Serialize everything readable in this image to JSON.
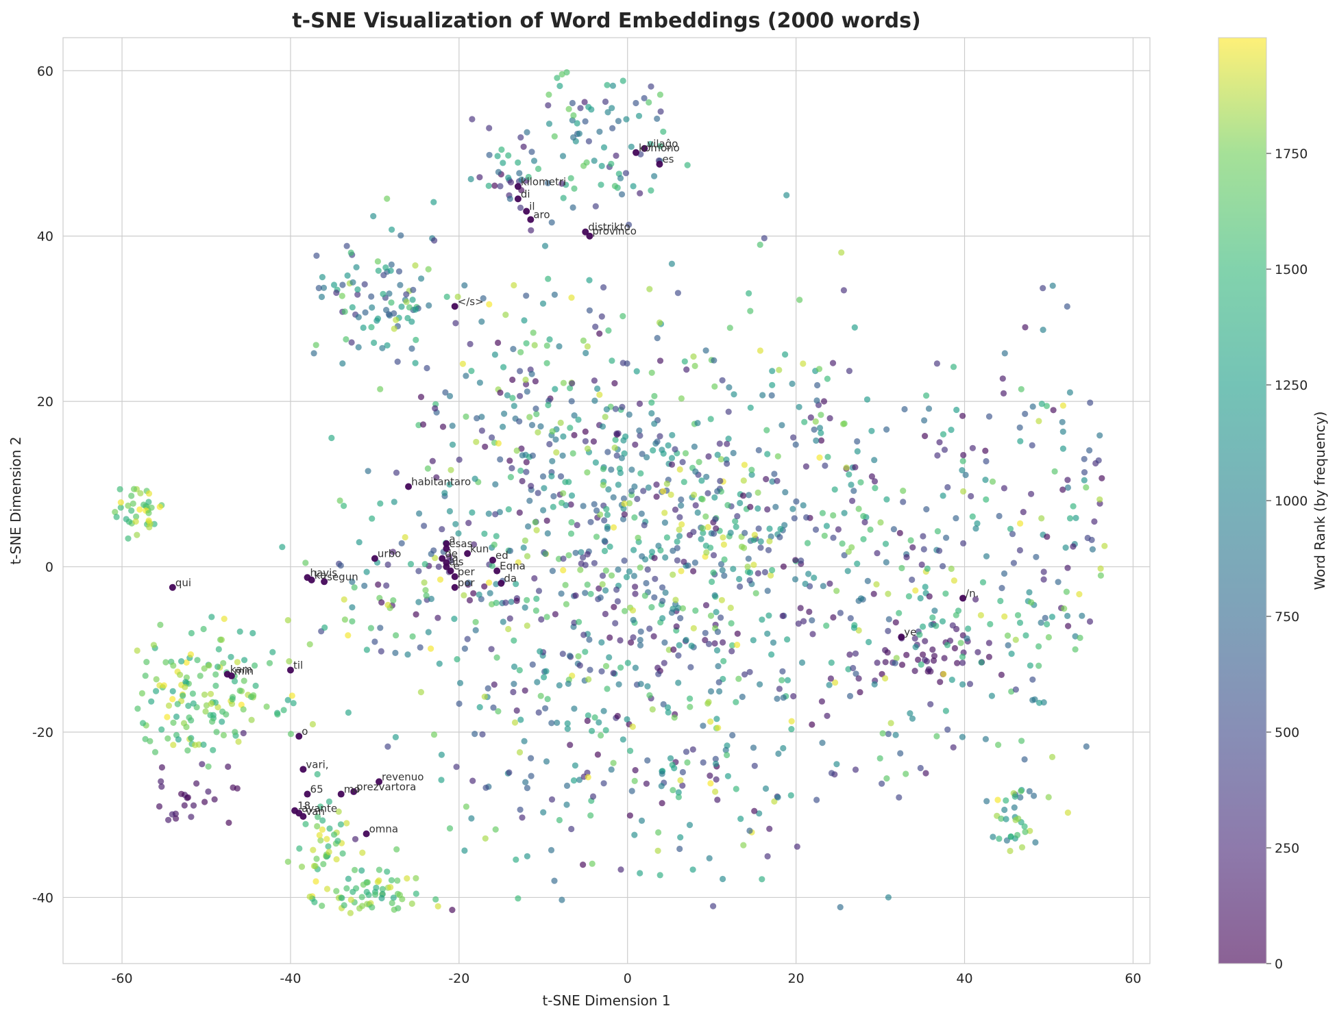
{
  "chart_data": {
    "type": "scatter",
    "title": "t-SNE Visualization of Word Embeddings (2000 words)",
    "xlabel": "t-SNE Dimension 1",
    "ylabel": "t-SNE Dimension 2",
    "xlim": [
      -67,
      62
    ],
    "ylim": [
      -48,
      64
    ],
    "xticks": [
      -60,
      -40,
      -20,
      0,
      20,
      40,
      60
    ],
    "yticks": [
      -40,
      -20,
      0,
      20,
      40,
      60
    ],
    "grid": true,
    "colormap": "viridis",
    "colorbar": {
      "label": "Word Rank (by frequency)",
      "range": [
        0,
        2000
      ],
      "ticks": [
        0,
        250,
        500,
        750,
        1000,
        1250,
        1500,
        1750
      ]
    },
    "point_count": 2000,
    "annotations": [
      {
        "x": 2,
        "y": 50.6,
        "rank": 40,
        "text": "vilaĝo"
      },
      {
        "x": 1,
        "y": 50.1,
        "rank": 40,
        "text": "komono"
      },
      {
        "x": 3.8,
        "y": 48.7,
        "rank": 40,
        "text": "es"
      },
      {
        "x": -13,
        "y": 46,
        "rank": 40,
        "text": "kilometri"
      },
      {
        "x": -13,
        "y": 44.5,
        "rank": 40,
        "text": "di"
      },
      {
        "x": -12,
        "y": 43,
        "rank": 40,
        "text": "il"
      },
      {
        "x": -11.5,
        "y": 42,
        "rank": 40,
        "text": "aro"
      },
      {
        "x": -5,
        "y": 40.5,
        "rank": 40,
        "text": "distrikto"
      },
      {
        "x": -4.5,
        "y": 40,
        "rank": 40,
        "text": "provinco"
      },
      {
        "x": -20.5,
        "y": 31.5,
        "rank": 40,
        "text": "</s>"
      },
      {
        "x": -26,
        "y": 9.7,
        "rank": 40,
        "text": "habitantaro"
      },
      {
        "x": -30,
        "y": 1,
        "rank": 40,
        "text": "urbo"
      },
      {
        "x": -21.5,
        "y": 2.8,
        "rank": 40,
        "text": "a"
      },
      {
        "x": -21.5,
        "y": 2.2,
        "rank": 40,
        "text": "esas"
      },
      {
        "x": -19,
        "y": 1.6,
        "rank": 40,
        "text": "kun"
      },
      {
        "x": -22,
        "y": 1,
        "rank": 40,
        "text": "de"
      },
      {
        "x": -21.5,
        "y": 0.5,
        "rank": 40,
        "text": "la"
      },
      {
        "x": -16,
        "y": 0.8,
        "rank": 40,
        "text": "ed"
      },
      {
        "x": -21.5,
        "y": 0,
        "rank": 40,
        "text": "ais"
      },
      {
        "x": -21,
        "y": -0.5,
        "rank": 40,
        "text": "e"
      },
      {
        "x": -15.5,
        "y": -0.5,
        "rank": 40,
        "text": "Eqna"
      },
      {
        "x": -20.5,
        "y": -1.2,
        "rank": 40,
        "text": "per"
      },
      {
        "x": -15,
        "y": -2,
        "rank": 40,
        "text": "da"
      },
      {
        "x": -20.5,
        "y": -2.5,
        "rank": 40,
        "text": "por"
      },
      {
        "x": -38,
        "y": -1.3,
        "rank": 40,
        "text": "havis"
      },
      {
        "x": -37.5,
        "y": -1.6,
        "rank": 40,
        "text": "ka"
      },
      {
        "x": -36,
        "y": -1.8,
        "rank": 40,
        "text": "segun"
      },
      {
        "x": -54,
        "y": -2.5,
        "rank": 40,
        "text": "qui"
      },
      {
        "x": 39.8,
        "y": -3.8,
        "rank": 40,
        "text": "/n."
      },
      {
        "x": 32.5,
        "y": -8.5,
        "rank": 40,
        "text": "ye"
      },
      {
        "x": -40,
        "y": -12.5,
        "rank": 40,
        "text": "til"
      },
      {
        "x": -47.5,
        "y": -13,
        "rank": 40,
        "text": "kam"
      },
      {
        "x": -47,
        "y": -13.2,
        "rank": 40,
        "text": "min"
      },
      {
        "x": -39,
        "y": -20.5,
        "rank": 40,
        "text": "o"
      },
      {
        "x": -38.5,
        "y": -24.5,
        "rank": 40,
        "text": "vari,"
      },
      {
        "x": -29.5,
        "y": -26,
        "rank": 40,
        "text": "revenuo"
      },
      {
        "x": -38,
        "y": -27.5,
        "rank": 40,
        "text": "65"
      },
      {
        "x": -34,
        "y": -27.5,
        "rank": 40,
        "text": "mo"
      },
      {
        "x": -32.5,
        "y": -27.2,
        "rank": 40,
        "text": "prezvartora"
      },
      {
        "x": -39.5,
        "y": -29.5,
        "rank": 40,
        "text": "18"
      },
      {
        "x": -39,
        "y": -29.8,
        "rank": 40,
        "text": "avante"
      },
      {
        "x": -38.5,
        "y": -30.2,
        "rank": 40,
        "text": "van"
      },
      {
        "x": -31,
        "y": -32.3,
        "rank": 40,
        "text": "omna"
      }
    ]
  }
}
